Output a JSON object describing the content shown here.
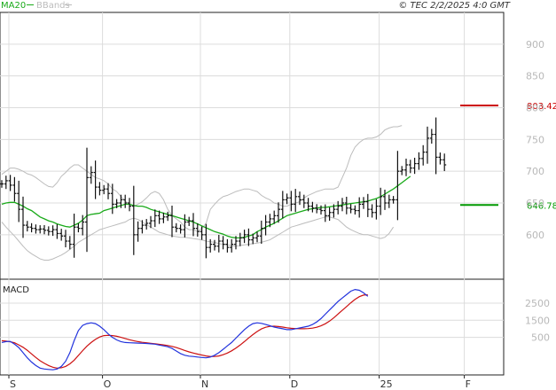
{
  "legend": {
    "ma20_label": "MA20",
    "bbands_label": "BBands",
    "ma20_color": "#1aaa1a",
    "bbands_color": "#bcbcbc"
  },
  "copyright": "© TEC 2/2/2025 4:0 GMT",
  "macd_label": "MACD",
  "levels": [
    {
      "value": 803.42,
      "label": "803.42",
      "color": "#cc0000"
    },
    {
      "value": 646.78,
      "label": "646.78",
      "color": "#009900"
    }
  ],
  "chart_data": [
    {
      "type": "ohlc",
      "ylim": [
        530,
        950
      ],
      "yticks": [
        600,
        650,
        700,
        750,
        800,
        850,
        900
      ],
      "ytick_labels": [
        "600",
        "650",
        "700",
        "750",
        "800",
        "850",
        "900"
      ],
      "grid": true,
      "xticks": [
        {
          "label": "S",
          "index": 0
        },
        {
          "label": "O",
          "index": 22
        },
        {
          "label": "N",
          "index": 45
        },
        {
          "label": "D",
          "index": 66
        },
        {
          "label": "25",
          "index": 87
        },
        {
          "label": "F",
          "index": 107
        }
      ],
      "close": [
        680,
        685,
        678,
        665,
        640,
        615,
        612,
        610,
        608,
        609,
        607,
        605,
        608,
        602,
        598,
        590,
        585,
        612,
        610,
        620,
        690,
        698,
        675,
        670,
        672,
        665,
        648,
        650,
        655,
        650,
        645,
        600,
        610,
        615,
        618,
        622,
        630,
        625,
        628,
        630,
        612,
        610,
        608,
        620,
        622,
        610,
        605,
        600,
        580,
        585,
        582,
        590,
        585,
        580,
        585,
        590,
        595,
        600,
        592,
        595,
        598,
        610,
        620,
        625,
        630,
        640,
        655,
        658,
        648,
        660,
        655,
        650,
        645,
        642,
        640,
        638,
        630,
        635,
        640,
        645,
        650,
        642,
        640,
        638,
        648,
        652,
        640,
        635,
        645,
        660,
        650,
        655,
        655,
        700,
        702,
        710,
        705,
        712,
        720,
        730,
        752,
        758,
        722,
        718,
        710
      ],
      "ma20": [
        648,
        650,
        651,
        651,
        648,
        645,
        641,
        638,
        633,
        628,
        625,
        622,
        620,
        617,
        615,
        613,
        612,
        615,
        618,
        623,
        630,
        632,
        633,
        634,
        638,
        640,
        642,
        644,
        646,
        648,
        648,
        646,
        645,
        645,
        643,
        640,
        638,
        636,
        634,
        632,
        630,
        628,
        626,
        624,
        622,
        620,
        617,
        614,
        611,
        608,
        605,
        603,
        601,
        598,
        596,
        595,
        595,
        596,
        598,
        600,
        605,
        608,
        612,
        615,
        618,
        622,
        626,
        630,
        632,
        634,
        636,
        638,
        640,
        641,
        642,
        643,
        643,
        644,
        645,
        646,
        647,
        648,
        649,
        650,
        651,
        652,
        653,
        655,
        657,
        660,
        664,
        668,
        672,
        677,
        682,
        687,
        692
      ],
      "bbands_upper": [
        695,
        700,
        705,
        705,
        703,
        700,
        696,
        694,
        690,
        685,
        680,
        676,
        675,
        682,
        692,
        698,
        705,
        710,
        710,
        705,
        700,
        695,
        690,
        688,
        685,
        680,
        672,
        668,
        660,
        653,
        648,
        645,
        648,
        652,
        658,
        665,
        668,
        665,
        655,
        640,
        630,
        625,
        620,
        612,
        608,
        608,
        605,
        610,
        618,
        640,
        648,
        655,
        660,
        662,
        665,
        668,
        670,
        672,
        672,
        670,
        668,
        662,
        658,
        655,
        650,
        648,
        645,
        645,
        648,
        650,
        652,
        658,
        662,
        665,
        668,
        670,
        672,
        672,
        672,
        675,
        690,
        705,
        725,
        738,
        745,
        750,
        752,
        752,
        754,
        758,
        765,
        768,
        770,
        770,
        772
      ],
      "bbands_lower": [
        620,
        612,
        605,
        598,
        590,
        582,
        575,
        570,
        566,
        562,
        560,
        560,
        562,
        565,
        568,
        572,
        577,
        582,
        588,
        592,
        596,
        600,
        604,
        608,
        610,
        612,
        614,
        616,
        618,
        620,
        624,
        626,
        624,
        620,
        616,
        612,
        608,
        604,
        602,
        600,
        598,
        597,
        596,
        596,
        595,
        594,
        593,
        592,
        590,
        589,
        588,
        586,
        585,
        584,
        583,
        582,
        583,
        584,
        585,
        586,
        587,
        588,
        590,
        592,
        596,
        600,
        604,
        608,
        612,
        614,
        616,
        618,
        620,
        622,
        624,
        626,
        628,
        628,
        626,
        624,
        618,
        612,
        608,
        605,
        602,
        600,
        600,
        598,
        596,
        594,
        596,
        602,
        612
      ]
    },
    {
      "type": "line",
      "series": [
        {
          "key": "macd",
          "color": "#2233dd"
        },
        {
          "key": "signal",
          "color": "#cc1111"
        }
      ],
      "ylim": [
        -1700,
        3900
      ],
      "yticks": [
        500,
        1500,
        2500
      ],
      "ytick_labels": [
        "500",
        "1500",
        "2500"
      ],
      "grid": true,
      "macd": [
        200,
        250,
        260,
        100,
        -100,
        -400,
        -700,
        -950,
        -1150,
        -1300,
        -1350,
        -1380,
        -1400,
        -1350,
        -1200,
        -900,
        -400,
        300,
        900,
        1200,
        1300,
        1350,
        1300,
        1150,
        950,
        700,
        500,
        350,
        250,
        200,
        180,
        170,
        160,
        150,
        140,
        120,
        100,
        50,
        0,
        -50,
        -150,
        -300,
        -450,
        -550,
        -600,
        -620,
        -650,
        -680,
        -700,
        -650,
        -550,
        -400,
        -200,
        0,
        200,
        450,
        700,
        950,
        1150,
        1300,
        1350,
        1320,
        1250,
        1180,
        1100,
        1050,
        1000,
        950,
        950,
        1000,
        1050,
        1100,
        1150,
        1250,
        1400,
        1600,
        1850,
        2100,
        2350,
        2600,
        2800,
        3000,
        3200,
        3300,
        3250,
        3100,
        2900
      ],
      "signal": [
        300,
        280,
        240,
        180,
        60,
        -80,
        -260,
        -470,
        -680,
        -870,
        -1020,
        -1150,
        -1250,
        -1300,
        -1280,
        -1200,
        -1050,
        -840,
        -560,
        -280,
        -20,
        200,
        380,
        520,
        600,
        620,
        600,
        560,
        500,
        430,
        360,
        300,
        250,
        210,
        180,
        150,
        120,
        90,
        60,
        20,
        -30,
        -100,
        -180,
        -270,
        -350,
        -420,
        -480,
        -540,
        -590,
        -620,
        -620,
        -590,
        -520,
        -420,
        -290,
        -130,
        50,
        250,
        460,
        660,
        840,
        990,
        1090,
        1140,
        1150,
        1130,
        1100,
        1060,
        1030,
        1010,
        1000,
        1000,
        1010,
        1040,
        1090,
        1170,
        1290,
        1450,
        1640,
        1860,
        2080,
        2300,
        2520,
        2720,
        2880,
        2970,
        2990
      ]
    }
  ]
}
